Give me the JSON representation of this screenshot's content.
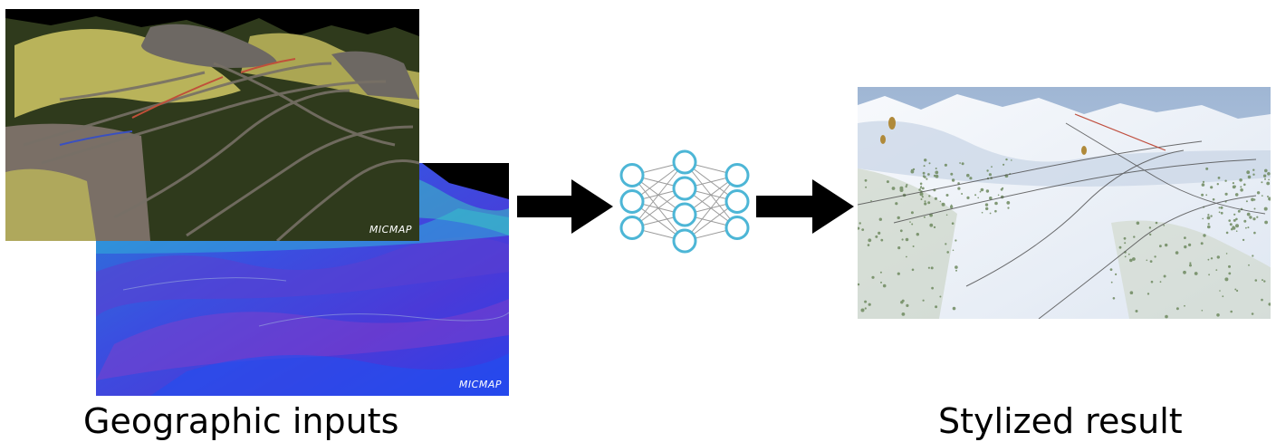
{
  "captions": {
    "inputs": "Geographic inputs",
    "result": "Stylized result"
  },
  "logo_text": "MICMAP",
  "icons": {
    "arrow": "right-arrow-icon",
    "network": "neural-network-icon"
  },
  "network": {
    "layers": [
      3,
      4,
      3
    ],
    "node_stroke": "#4db6d6"
  },
  "colors": {
    "arrow": "#000000",
    "normal_map": "#3a4fe0",
    "segmentation_dark": "#2f3a1c",
    "segmentation_yellow": "#b9b35a",
    "snow": "#f3f6fb"
  }
}
